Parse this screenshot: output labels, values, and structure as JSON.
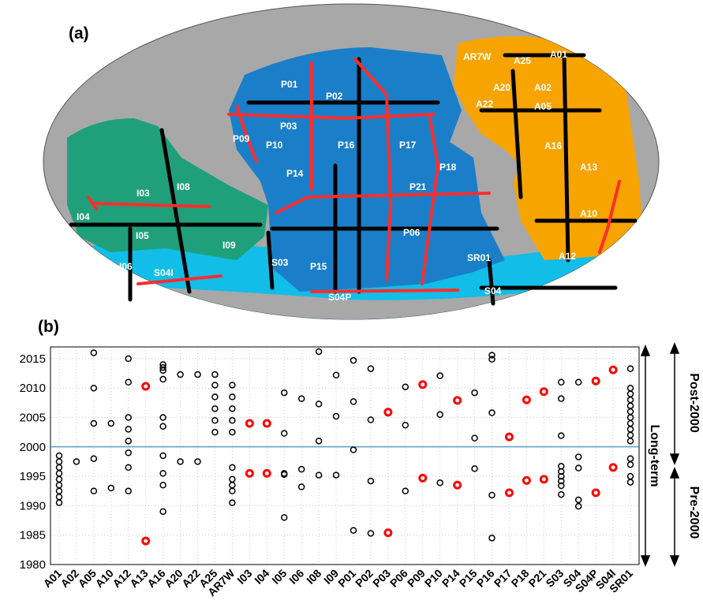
{
  "panel_a_label": "(a)",
  "panel_b_label": "(b)",
  "side_labels": {
    "long_term": "Long-term",
    "post_2000": "Post-2000",
    "pre_2000": "Pre-2000"
  },
  "colors": {
    "atlantic": "#f7a400",
    "pacific": "#1a7fc8",
    "indian": "#1fa07a",
    "southern": "#12bde8",
    "land": "#a8a8a8",
    "line_section": "#000000",
    "highlight_section": "#ff2d2d",
    "marker_default": "#000000",
    "marker_highlight": "#ff0000",
    "divider": "#1f77b4"
  },
  "map_labels": [
    "AR7W",
    "A25",
    "A01",
    "A20",
    "A02",
    "A22",
    "A05",
    "A16",
    "A13",
    "A10",
    "A12",
    "SR01",
    "S04",
    "P01",
    "P02",
    "P03",
    "P09",
    "P10",
    "P16",
    "P17",
    "P14",
    "P18",
    "P21",
    "P06",
    "S03",
    "P15",
    "S04P",
    "I03",
    "I08",
    "I04",
    "I05",
    "I09",
    "I06",
    "S04I"
  ],
  "chart_data": {
    "type": "scatter",
    "ylim": [
      1980,
      2017
    ],
    "yticks": [
      1980,
      1985,
      1990,
      1995,
      2000,
      2005,
      2010,
      2015
    ],
    "divider_year": 2000,
    "categories": [
      "A01",
      "A02",
      "A05",
      "A10",
      "A12",
      "A13",
      "A16",
      "A20",
      "A22",
      "A25",
      "AR7W",
      "I03",
      "I04",
      "I05",
      "I06",
      "I08",
      "I09",
      "P01",
      "P02",
      "P03",
      "P06",
      "P09",
      "P10",
      "P14",
      "P15",
      "P16",
      "P17",
      "P18",
      "P21",
      "S03",
      "S04",
      "S04P",
      "S04I",
      "SR01"
    ],
    "occupations": {
      "A01": [
        1998.5,
        1997.5,
        1996.5,
        1995.5,
        1994.5,
        1993.5,
        1992.5,
        1991.5,
        1990.5
      ],
      "A02": [
        1997.5
      ],
      "A05": [
        2016.0,
        2010.0,
        2004.0,
        1998.0,
        1992.5
      ],
      "A10": [
        2004.0,
        1993.0
      ],
      "A12": [
        2015.0,
        2011.0,
        2005.0,
        2003.0,
        2001.0,
        1999.0,
        1996.5,
        1992.5
      ],
      "A13": [
        2010.3,
        1984.0
      ],
      "A16": [
        2014.0,
        2013.5,
        2013.0,
        2011.5,
        2005.0,
        2003.5,
        1998.5,
        1995.5,
        1993.5,
        1989.0
      ],
      "A20": [
        2012.3,
        1997.5
      ],
      "A22": [
        2012.3,
        1997.5
      ],
      "A25": [
        2012.3,
        2010.5,
        2008.5,
        2006.5,
        2004.5,
        2002.5
      ],
      "AR7W": [
        2010.5,
        2008.5,
        2006.5,
        2004.5,
        2002.5,
        1996.5,
        1994.5,
        1993.5,
        1992.5,
        1990.5
      ],
      "I03": [
        2004.0,
        1995.5
      ],
      "I04": [
        2004.0,
        1995.5
      ],
      "I05": [
        2009.2,
        2002.3,
        1995.5,
        1995.3,
        1988.0
      ],
      "I06": [
        2008.2,
        1996.2,
        1993.2
      ],
      "I08": [
        2016.2,
        2007.3,
        2001.0,
        1995.2
      ],
      "I09": [
        2012.2,
        2005.2,
        1995.2
      ],
      "P01": [
        2014.7,
        2007.7,
        1999.5,
        1985.8
      ],
      "P02": [
        2013.3,
        2004.6,
        1994.2,
        1985.3
      ],
      "P03": [
        2005.9,
        1985.4
      ],
      "P06": [
        2010.2,
        2003.7,
        1992.5
      ],
      "P09": [
        2010.6,
        1994.7
      ],
      "P10": [
        2012.1,
        2005.5,
        1993.9
      ],
      "P14": [
        2007.9,
        1993.5
      ],
      "P15": [
        2009.2,
        2001.5,
        1996.3
      ],
      "P16": [
        2015.6,
        2014.9,
        2005.8,
        1991.8,
        1984.5
      ],
      "P17": [
        2001.7,
        1992.2
      ],
      "P18": [
        2008.0,
        1994.3
      ],
      "P21": [
        2009.4,
        1994.5
      ],
      "S03": [
        2011.0,
        2008.2,
        2001.9,
        1996.7,
        1995.8,
        1995.0,
        1994.2,
        1993.4,
        1991.9
      ],
      "S04": [
        2011.0,
        1998.3,
        1996.4,
        1991.0,
        1989.9
      ],
      "S04P": [
        2011.2,
        1992.2
      ],
      "S04I": [
        2013.1,
        1996.5
      ],
      "SR01": [
        2013.3,
        2010.0,
        2009.0,
        2008.0,
        2007.0,
        2006.0,
        2005.0,
        2004.0,
        2003.0,
        2002.0,
        2001.0,
        1998.0,
        1997.0,
        1995.0,
        1994.0
      ]
    },
    "highlighted": {
      "A13": [
        2010.3,
        1984.0
      ],
      "I03": [
        2004.0,
        1995.5
      ],
      "I04": [
        2004.0,
        1995.5
      ],
      "P03": [
        2005.9,
        1985.4
      ],
      "P09": [
        2010.6,
        1994.7
      ],
      "P14": [
        2007.9,
        1993.5
      ],
      "P17": [
        2001.7,
        1992.2
      ],
      "P18": [
        2008.0,
        1994.3
      ],
      "P21": [
        2009.4,
        1994.5
      ],
      "S04P": [
        2011.2,
        1992.2
      ],
      "S04I": [
        2013.1,
        1996.5
      ]
    }
  }
}
